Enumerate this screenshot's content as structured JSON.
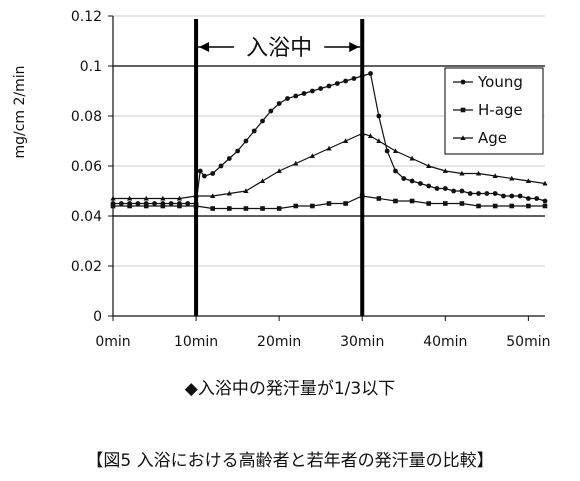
{
  "chart_data": {
    "type": "line",
    "ylabel": "mg/cm 2/min",
    "x_tick_labels": [
      "0min",
      "10min",
      "20min",
      "30min",
      "40min",
      "50min"
    ],
    "y_tick_labels": [
      "0",
      "0.02",
      "0.04",
      "0.06",
      "0.08",
      "0.1",
      "0.12"
    ],
    "xlim": [
      0,
      52
    ],
    "ylim": [
      0,
      0.12
    ],
    "legend_position": "top-right",
    "bathing_period": {
      "label": "入浴中",
      "start": 10,
      "end": 30
    },
    "series": [
      {
        "name": "Young",
        "marker": "circle",
        "x": [
          0,
          1,
          2,
          3,
          4,
          5,
          6,
          7,
          8,
          9,
          10,
          10.5,
          11,
          12,
          13,
          14,
          15,
          16,
          17,
          18,
          19,
          20,
          21,
          22,
          23,
          24,
          25,
          26,
          27,
          28,
          29,
          30,
          31,
          32,
          33,
          34,
          35,
          36,
          37,
          38,
          39,
          40,
          41,
          42,
          43,
          44,
          45,
          46,
          47,
          48,
          49,
          50,
          51,
          52
        ],
        "y": [
          0.045,
          0.045,
          0.045,
          0.045,
          0.045,
          0.045,
          0.045,
          0.045,
          0.045,
          0.045,
          0.045,
          0.058,
          0.056,
          0.057,
          0.06,
          0.063,
          0.066,
          0.07,
          0.074,
          0.078,
          0.082,
          0.085,
          0.087,
          0.088,
          0.089,
          0.09,
          0.091,
          0.092,
          0.093,
          0.094,
          0.095,
          0.096,
          0.097,
          0.08,
          0.066,
          0.058,
          0.055,
          0.054,
          0.053,
          0.052,
          0.051,
          0.051,
          0.05,
          0.05,
          0.049,
          0.049,
          0.049,
          0.049,
          0.048,
          0.048,
          0.048,
          0.047,
          0.047,
          0.046
        ]
      },
      {
        "name": "H-age",
        "marker": "square",
        "x": [
          0,
          2,
          4,
          6,
          8,
          10,
          12,
          14,
          16,
          18,
          20,
          22,
          24,
          26,
          28,
          30,
          32,
          34,
          36,
          38,
          40,
          42,
          44,
          46,
          48,
          50,
          52
        ],
        "y": [
          0.044,
          0.044,
          0.044,
          0.044,
          0.044,
          0.044,
          0.043,
          0.043,
          0.043,
          0.043,
          0.043,
          0.044,
          0.044,
          0.045,
          0.045,
          0.048,
          0.047,
          0.046,
          0.046,
          0.045,
          0.045,
          0.045,
          0.044,
          0.044,
          0.044,
          0.044,
          0.044
        ]
      },
      {
        "name": "Age",
        "marker": "triangle",
        "x": [
          0,
          2,
          4,
          6,
          8,
          10,
          12,
          14,
          16,
          18,
          20,
          22,
          24,
          26,
          28,
          30,
          31,
          32,
          34,
          36,
          38,
          40,
          42,
          44,
          46,
          48,
          50,
          52
        ],
        "y": [
          0.047,
          0.047,
          0.047,
          0.047,
          0.047,
          0.048,
          0.048,
          0.049,
          0.05,
          0.054,
          0.058,
          0.061,
          0.064,
          0.067,
          0.07,
          0.073,
          0.072,
          0.07,
          0.066,
          0.063,
          0.06,
          0.058,
          0.057,
          0.057,
          0.056,
          0.055,
          0.054,
          0.053
        ]
      }
    ]
  },
  "note": "◆入浴中の発汗量が1/3以下",
  "caption": "【図5  入浴における高齢者と若年者の発汗量の比較】",
  "colors": {
    "line": "#111111",
    "highlight_gridline": "#000000",
    "gridline": "#bbbbbb"
  }
}
